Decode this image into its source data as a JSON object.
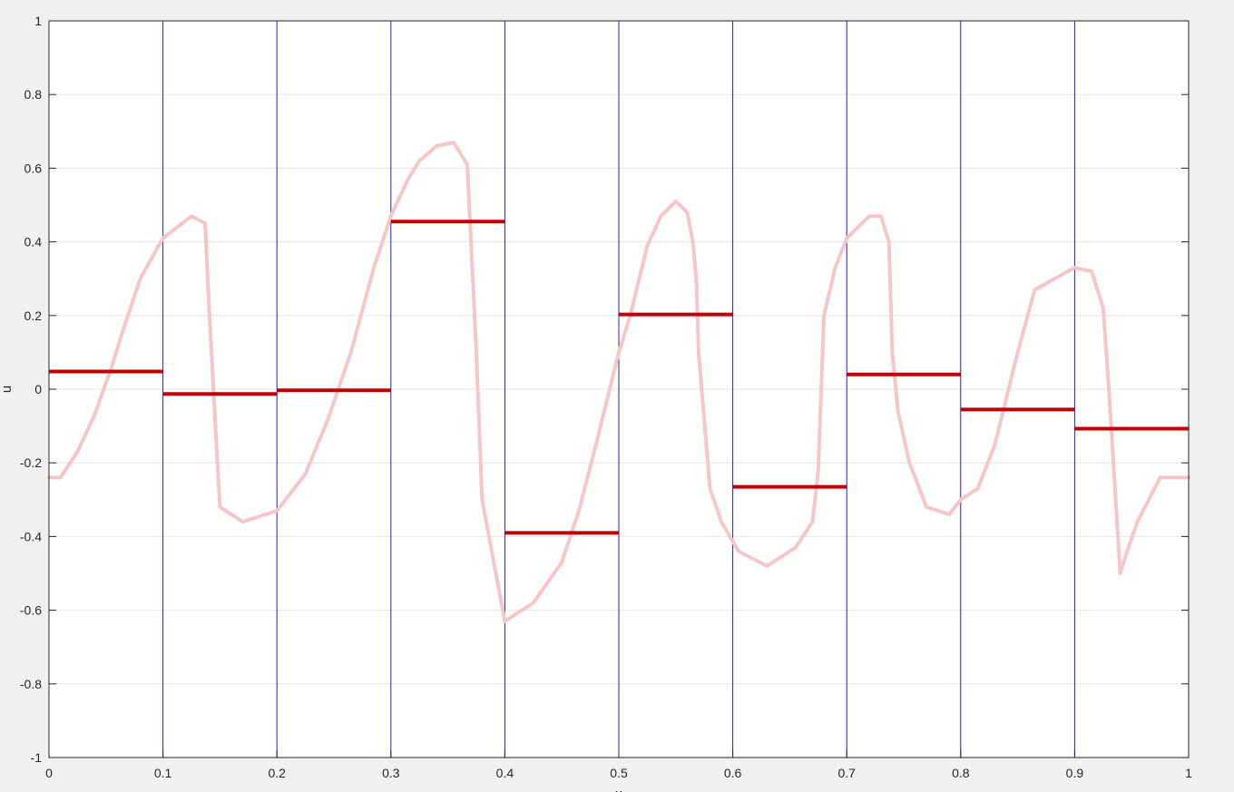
{
  "chart_data": {
    "type": "line",
    "title": "",
    "xlabel": "x",
    "ylabel": "u",
    "xlim": [
      0,
      1
    ],
    "ylim": [
      -1,
      1
    ],
    "grid": "on",
    "x_ticks": [
      "0",
      "0.1",
      "0.2",
      "0.3",
      "0.4",
      "0.5",
      "0.6",
      "0.7",
      "0.8",
      "0.9",
      "1"
    ],
    "y_ticks": [
      "-1",
      "-0.8",
      "-0.6",
      "-0.4",
      "-0.2",
      "0",
      "0.2",
      "0.4",
      "0.6",
      "0.8",
      "1"
    ],
    "y_tick_values": [
      -1,
      -0.8,
      -0.6,
      -0.4,
      -0.2,
      0,
      0.2,
      0.4,
      0.6,
      0.8,
      1
    ],
    "x_tick_values": [
      0,
      0.1,
      0.2,
      0.3,
      0.4,
      0.5,
      0.6,
      0.7,
      0.8,
      0.9,
      1
    ],
    "cell_boundaries": [
      0,
      0.1,
      0.2,
      0.3,
      0.4,
      0.5,
      0.6,
      0.7,
      0.8,
      0.9,
      1
    ],
    "colors": {
      "curve": "#f7c5c8",
      "cell_average": "#c00000",
      "cell_boundary": "#2020c8",
      "axes": "#262626",
      "grid": "#e6e6e6"
    },
    "series": [
      {
        "kind": "curve",
        "x": [
          0,
          0.01,
          0.025,
          0.04,
          0.055,
          0.065,
          0.08,
          0.1,
          0.125,
          0.137,
          0.14,
          0.146,
          0.15,
          0.17,
          0.2,
          0.225,
          0.245,
          0.265,
          0.285,
          0.3,
          0.315,
          0.325,
          0.34,
          0.355,
          0.367,
          0.375,
          0.38,
          0.4,
          0.425,
          0.45,
          0.465,
          0.48,
          0.5,
          0.51,
          0.525,
          0.537,
          0.55,
          0.56,
          0.565,
          0.568,
          0.57,
          0.58,
          0.59,
          0.605,
          0.63,
          0.655,
          0.67,
          0.675,
          0.68,
          0.69,
          0.7,
          0.72,
          0.73,
          0.737,
          0.74,
          0.745,
          0.755,
          0.77,
          0.79,
          0.8,
          0.815,
          0.83,
          0.85,
          0.865,
          0.9,
          0.915,
          0.925,
          0.93,
          0.935,
          0.94,
          0.945,
          0.955,
          0.975,
          1
        ],
        "y": [
          -0.24,
          -0.24,
          -0.17,
          -0.07,
          0.06,
          0.16,
          0.3,
          0.41,
          0.47,
          0.45,
          0.25,
          -0.1,
          -0.32,
          -0.36,
          -0.33,
          -0.23,
          -0.08,
          0.1,
          0.33,
          0.47,
          0.57,
          0.62,
          0.66,
          0.67,
          0.61,
          0.1,
          -0.3,
          -0.63,
          -0.58,
          -0.47,
          -0.33,
          -0.15,
          0.1,
          0.2,
          0.39,
          0.47,
          0.51,
          0.48,
          0.4,
          0.3,
          0.1,
          -0.27,
          -0.36,
          -0.44,
          -0.48,
          -0.43,
          -0.36,
          -0.22,
          0.2,
          0.33,
          0.41,
          0.47,
          0.47,
          0.4,
          0.1,
          -0.06,
          -0.2,
          -0.32,
          -0.34,
          -0.3,
          -0.27,
          -0.15,
          0.1,
          0.27,
          0.33,
          0.32,
          0.22,
          0,
          -0.25,
          -0.5,
          -0.45,
          -0.36,
          -0.24,
          -0.24
        ]
      },
      {
        "kind": "cell_averages",
        "values": [
          0.048,
          -0.013,
          -0.003,
          0.455,
          -0.39,
          0.203,
          -0.265,
          0.04,
          -0.055,
          -0.107
        ]
      }
    ]
  }
}
